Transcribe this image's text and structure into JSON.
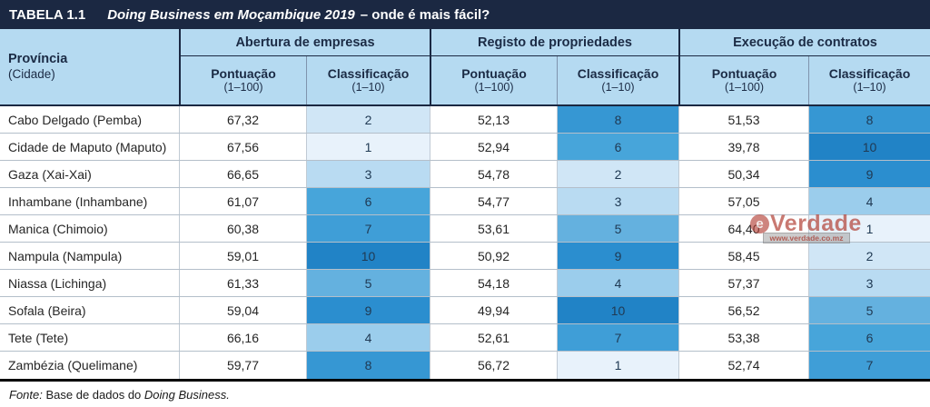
{
  "title_bar": {
    "label": "TABELA 1.1",
    "title_italic": "Doing Business em Moçambique 2019",
    "title_rest": "– onde é mais fácil?"
  },
  "table": {
    "province_header": {
      "line1": "Província",
      "line2": "(Cidade)"
    },
    "groups": [
      {
        "label": "Abertura de empresas"
      },
      {
        "label": "Registo de propriedades"
      },
      {
        "label": "Execução de contratos"
      }
    ],
    "subheaders": {
      "score_label": "Pontuação",
      "score_range": "(1–100)",
      "rank_label": "Classificação",
      "rank_range": "(1–10)"
    },
    "rows": [
      {
        "province": "Cabo Delgado (Pemba)",
        "abertura_score": "67,32",
        "abertura_rank": 2,
        "registo_score": "52,13",
        "registo_rank": 8,
        "execucao_score": "51,53",
        "execucao_rank": 8
      },
      {
        "province": "Cidade de Maputo (Maputo)",
        "abertura_score": "67,56",
        "abertura_rank": 1,
        "registo_score": "52,94",
        "registo_rank": 6,
        "execucao_score": "39,78",
        "execucao_rank": 10
      },
      {
        "province": "Gaza (Xai-Xai)",
        "abertura_score": "66,65",
        "abertura_rank": 3,
        "registo_score": "54,78",
        "registo_rank": 2,
        "execucao_score": "50,34",
        "execucao_rank": 9
      },
      {
        "province": "Inhambane (Inhambane)",
        "abertura_score": "61,07",
        "abertura_rank": 6,
        "registo_score": "54,77",
        "registo_rank": 3,
        "execucao_score": "57,05",
        "execucao_rank": 4
      },
      {
        "province": "Manica (Chimoio)",
        "abertura_score": "60,38",
        "abertura_rank": 7,
        "registo_score": "53,61",
        "registo_rank": 5,
        "execucao_score": "64,40",
        "execucao_rank": 1
      },
      {
        "province": "Nampula (Nampula)",
        "abertura_score": "59,01",
        "abertura_rank": 10,
        "registo_score": "50,92",
        "registo_rank": 9,
        "execucao_score": "58,45",
        "execucao_rank": 2
      },
      {
        "province": "Niassa (Lichinga)",
        "abertura_score": "61,33",
        "abertura_rank": 5,
        "registo_score": "54,18",
        "registo_rank": 4,
        "execucao_score": "57,37",
        "execucao_rank": 3
      },
      {
        "province": "Sofala (Beira)",
        "abertura_score": "59,04",
        "abertura_rank": 9,
        "registo_score": "49,94",
        "registo_rank": 10,
        "execucao_score": "56,52",
        "execucao_rank": 5
      },
      {
        "province": "Tete (Tete)",
        "abertura_score": "66,16",
        "abertura_rank": 4,
        "registo_score": "52,61",
        "registo_rank": 7,
        "execucao_score": "53,38",
        "execucao_rank": 6
      },
      {
        "province": "Zambézia (Quelimane)",
        "abertura_score": "59,77",
        "abertura_rank": 8,
        "registo_score": "56,72",
        "registo_rank": 1,
        "execucao_score": "52,74",
        "execucao_rank": 7
      }
    ],
    "rank_colors": {
      "1": "#e8f2fb",
      "2": "#d0e6f6",
      "3": "#b9dbf2",
      "4": "#9bcdec",
      "5": "#64b1df",
      "6": "#47a5da",
      "7": "#3f9ed7",
      "8": "#3697d3",
      "9": "#2b8ecf",
      "10": "#2183c6"
    }
  },
  "watermark": {
    "logo": "e",
    "name": "Verdade",
    "url": "www.verdade.co.mz",
    "color": "#b23e34"
  },
  "footer": {
    "prefix_italic": "Fonte:",
    "text": " Base de dados do ",
    "suffix_italic": "Doing Business."
  },
  "colors": {
    "title_bar_bg": "#1b2842",
    "header_bg": "#b5daf1",
    "header_text": "#1b2b45",
    "dark_line": "#1b2842",
    "grid_line": "#b4bfca"
  }
}
